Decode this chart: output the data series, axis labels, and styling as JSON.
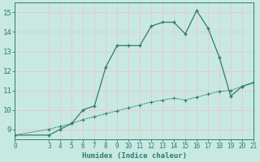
{
  "line1_x": [
    0,
    3,
    4,
    5,
    6,
    7,
    8,
    9,
    10,
    11,
    12,
    13,
    14,
    15,
    16,
    17,
    18,
    19,
    20,
    21
  ],
  "line1_y": [
    8.7,
    8.7,
    9.0,
    9.3,
    10.0,
    10.2,
    12.2,
    13.3,
    13.3,
    13.3,
    14.3,
    14.5,
    14.5,
    13.9,
    15.1,
    14.2,
    12.7,
    10.7,
    11.2,
    11.4
  ],
  "line2_x": [
    0,
    3,
    4,
    5,
    6,
    7,
    8,
    9,
    10,
    11,
    12,
    13,
    14,
    15,
    16,
    17,
    18,
    19,
    20,
    21
  ],
  "line2_y": [
    8.7,
    9.0,
    9.15,
    9.3,
    9.5,
    9.65,
    9.8,
    9.95,
    10.1,
    10.25,
    10.4,
    10.5,
    10.6,
    10.5,
    10.65,
    10.8,
    10.95,
    11.0,
    11.2,
    11.4
  ],
  "line_color": "#2d7d6e",
  "bg_color": "#c8e8e2",
  "grid_color": "#e8c8c8",
  "xlabel": "Humidex (Indice chaleur)",
  "xlim": [
    0,
    21
  ],
  "ylim": [
    8.5,
    15.5
  ],
  "yticks": [
    9,
    10,
    11,
    12,
    13,
    14,
    15
  ],
  "xticks": [
    0,
    3,
    4,
    5,
    6,
    7,
    8,
    9,
    10,
    11,
    12,
    13,
    14,
    15,
    16,
    17,
    18,
    19,
    20,
    21
  ],
  "marker_size": 3.5,
  "line_width": 0.9
}
